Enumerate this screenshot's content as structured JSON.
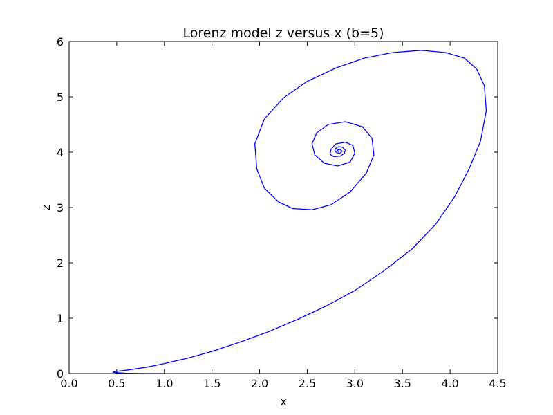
{
  "chart_data": {
    "type": "line",
    "title": "Lorenz model z versus x (b=5)",
    "xlabel": "x",
    "ylabel": "z",
    "xlim": [
      0,
      4.5
    ],
    "ylim": [
      0,
      6
    ],
    "xticks": [
      0.0,
      0.5,
      1.0,
      1.5,
      2.0,
      2.5,
      3.0,
      3.5,
      4.0,
      4.5
    ],
    "xtick_labels": [
      "0.0",
      "0.5",
      "1.0",
      "1.5",
      "2.0",
      "2.5",
      "3.0",
      "3.5",
      "4.0",
      "4.5"
    ],
    "yticks": [
      0,
      1,
      2,
      3,
      4,
      5,
      6
    ],
    "ytick_labels": [
      "0",
      "1",
      "2",
      "3",
      "4",
      "5",
      "6"
    ],
    "grid": false,
    "colors": {
      "line": "#0000ff",
      "frame": "#000000",
      "background": "#ffffff"
    },
    "series": [
      {
        "x": [
          1.0,
          0.78,
          0.6,
          0.5,
          0.46,
          0.5,
          0.6,
          0.8,
          1.0,
          1.25,
          1.5,
          1.8,
          2.1,
          2.4,
          2.7,
          3.0,
          3.3,
          3.6,
          3.85,
          4.05,
          4.2,
          4.32,
          4.38,
          4.36,
          4.28,
          4.15,
          3.95,
          3.7,
          3.4,
          3.1,
          2.8,
          2.5,
          2.25,
          2.05,
          1.95,
          1.97,
          2.05,
          2.2,
          2.35,
          2.55,
          2.75,
          2.95,
          3.12,
          3.2,
          3.18,
          3.08,
          2.9,
          2.72,
          2.6,
          2.55,
          2.58,
          2.68,
          2.82,
          2.95,
          3.0,
          2.98,
          2.9,
          2.8,
          2.75,
          2.74,
          2.78,
          2.85,
          2.89,
          2.9,
          2.87,
          2.83,
          2.8,
          2.79,
          2.81,
          2.84,
          2.86,
          2.86,
          2.84,
          2.82,
          2.82,
          2.83
        ],
        "y": [
          0.0,
          0.0,
          0.005,
          0.015,
          0.025,
          0.04,
          0.06,
          0.11,
          0.18,
          0.28,
          0.4,
          0.57,
          0.76,
          0.98,
          1.22,
          1.5,
          1.85,
          2.25,
          2.7,
          3.2,
          3.7,
          4.2,
          4.75,
          5.2,
          5.5,
          5.7,
          5.8,
          5.84,
          5.8,
          5.7,
          5.52,
          5.28,
          4.98,
          4.6,
          4.15,
          3.7,
          3.35,
          3.1,
          2.98,
          2.96,
          3.05,
          3.28,
          3.62,
          3.95,
          4.25,
          4.46,
          4.55,
          4.5,
          4.35,
          4.15,
          3.95,
          3.8,
          3.75,
          3.82,
          3.98,
          4.12,
          4.18,
          4.15,
          4.05,
          3.96,
          3.92,
          3.93,
          3.98,
          4.04,
          4.09,
          4.1,
          4.07,
          4.03,
          3.99,
          3.98,
          4.0,
          4.03,
          4.05,
          4.04,
          4.02,
          4.01
        ]
      }
    ]
  }
}
